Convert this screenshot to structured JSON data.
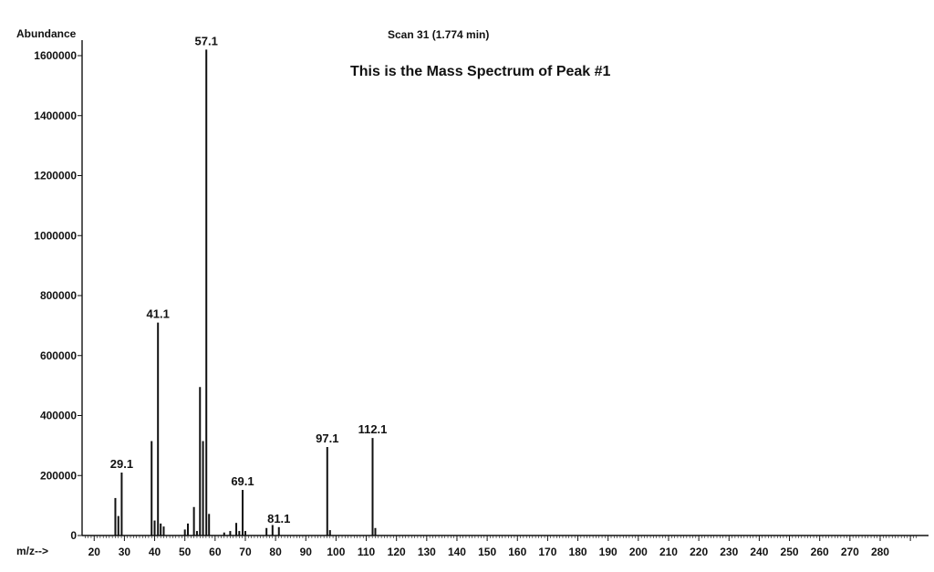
{
  "chart_data": {
    "type": "bar",
    "title": "Scan 31 (1.774 min)",
    "annotation": "This is the Mass Spectrum of Peak #1",
    "ylabel": "Abundance",
    "xlabel": "m/z-->",
    "xlim": [
      16,
      296
    ],
    "ylim": [
      0,
      1650000
    ],
    "yticks": [
      0,
      200000,
      400000,
      600000,
      800000,
      1000000,
      1200000,
      1400000,
      1600000
    ],
    "xticks": [
      20,
      30,
      40,
      50,
      60,
      70,
      80,
      90,
      100,
      110,
      120,
      130,
      140,
      150,
      160,
      170,
      180,
      190,
      200,
      210,
      220,
      230,
      240,
      250,
      260,
      270,
      280
    ],
    "grid": false,
    "peaks": [
      {
        "mz": 27,
        "abundance": 125000
      },
      {
        "mz": 28,
        "abundance": 65000
      },
      {
        "mz": 29.1,
        "abundance": 210000,
        "label": "29.1"
      },
      {
        "mz": 39,
        "abundance": 315000
      },
      {
        "mz": 40,
        "abundance": 50000
      },
      {
        "mz": 41.1,
        "abundance": 710000,
        "label": "41.1"
      },
      {
        "mz": 42,
        "abundance": 40000
      },
      {
        "mz": 43,
        "abundance": 30000
      },
      {
        "mz": 50,
        "abundance": 20000
      },
      {
        "mz": 51,
        "abundance": 40000
      },
      {
        "mz": 53,
        "abundance": 95000
      },
      {
        "mz": 54,
        "abundance": 15000
      },
      {
        "mz": 55,
        "abundance": 495000
      },
      {
        "mz": 56,
        "abundance": 315000
      },
      {
        "mz": 57.1,
        "abundance": 1620000,
        "label": "57.1"
      },
      {
        "mz": 58,
        "abundance": 72000
      },
      {
        "mz": 63,
        "abundance": 10000
      },
      {
        "mz": 65,
        "abundance": 15000
      },
      {
        "mz": 67,
        "abundance": 42000
      },
      {
        "mz": 68,
        "abundance": 15000
      },
      {
        "mz": 69.1,
        "abundance": 152000,
        "label": "69.1"
      },
      {
        "mz": 70,
        "abundance": 15000
      },
      {
        "mz": 77,
        "abundance": 25000
      },
      {
        "mz": 79,
        "abundance": 35000
      },
      {
        "mz": 81.1,
        "abundance": 28000,
        "label": "81.1"
      },
      {
        "mz": 97.1,
        "abundance": 295000,
        "label": "97.1"
      },
      {
        "mz": 98,
        "abundance": 18000
      },
      {
        "mz": 112.1,
        "abundance": 325000,
        "label": "112.1"
      },
      {
        "mz": 113,
        "abundance": 25000
      }
    ]
  }
}
